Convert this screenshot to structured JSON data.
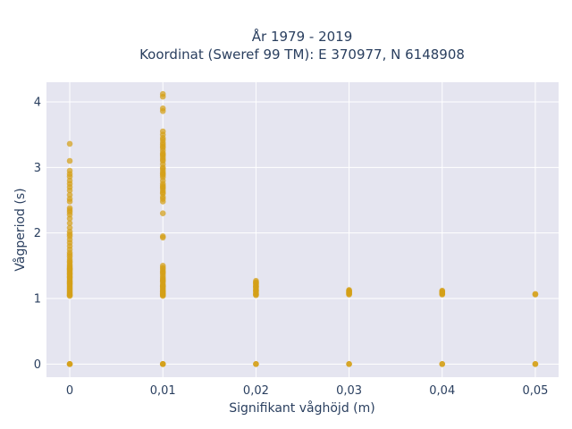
{
  "chart_data": {
    "type": "scatter",
    "title": "År 1979 - 2019",
    "subtitle": "Koordinat (Sweref 99 TM): E 370977, N 6148908",
    "xlabel": "Signifikant våghöjd (m)",
    "ylabel": "Vågperiod (s)",
    "xlim": [
      -0.0025,
      0.0525
    ],
    "ylim": [
      -0.2,
      4.3
    ],
    "x_ticks": [
      0,
      0.01,
      0.02,
      0.03,
      0.04,
      0.05
    ],
    "x_tick_labels": [
      "0",
      "0,01",
      "0,02",
      "0,03",
      "0,04",
      "0,05"
    ],
    "y_ticks": [
      0,
      1,
      2,
      3,
      4
    ],
    "y_tick_labels": [
      "0",
      "1",
      "2",
      "3",
      "4"
    ],
    "grid": true,
    "legend": "none",
    "colors": {
      "marker": "#d4a017",
      "plot_bg": "#e5e5f0",
      "grid": "#ffffff",
      "text": "#2a3f5f"
    },
    "series": [
      {
        "x": [
          0,
          0,
          0,
          0,
          0,
          0,
          0,
          0,
          0,
          0,
          0,
          0,
          0,
          0,
          0,
          0,
          0,
          0,
          0,
          0,
          0,
          0,
          0,
          0,
          0,
          0,
          0,
          0,
          0,
          0,
          0,
          0,
          0,
          0,
          0,
          0,
          0,
          0,
          0,
          0,
          0,
          0,
          0,
          0,
          0,
          0,
          0,
          0,
          0,
          0,
          0,
          0,
          0,
          0,
          0,
          0,
          0,
          0,
          0,
          0,
          0,
          0,
          0,
          0,
          0.01,
          0.01,
          0.01,
          0.01,
          0.01,
          0.01,
          0.01,
          0.01,
          0.01,
          0.01,
          0.01,
          0.01,
          0.01,
          0.01,
          0.01,
          0.01,
          0.01,
          0.01,
          0.01,
          0.01,
          0.01,
          0.01,
          0.01,
          0.01,
          0.01,
          0.01,
          0.01,
          0.01,
          0.01,
          0.01,
          0.01,
          0.01,
          0.01,
          0.01,
          0.01,
          0.01,
          0.01,
          0.01,
          0.01,
          0.01,
          0.01,
          0.01,
          0.01,
          0.01,
          0.01,
          0.01,
          0.01,
          0.01,
          0.01,
          0.01,
          0.01,
          0.01,
          0.01,
          0.01,
          0.01,
          0.01,
          0.01,
          0.01,
          0.01,
          0.01,
          0.01,
          0.01,
          0.01,
          0.01,
          0.01,
          0.01,
          0.01,
          0.01,
          0.01,
          0.01,
          0.02,
          0.02,
          0.02,
          0.02,
          0.02,
          0.02,
          0.02,
          0.02,
          0.02,
          0.02,
          0.02,
          0.02,
          0.02,
          0.02,
          0.02,
          0.02,
          0.02,
          0.02,
          0.03,
          0.03,
          0.03,
          0.03,
          0.03,
          0.03,
          0.03,
          0.03,
          0.03,
          0.03,
          0.04,
          0.04,
          0.04,
          0.04,
          0.04,
          0.04,
          0.04,
          0.04,
          0.04,
          0.05,
          0.05,
          0.05,
          0.05
        ],
        "y": [
          0,
          0,
          0,
          3.36,
          3.1,
          2.95,
          2.9,
          2.86,
          2.8,
          2.75,
          2.7,
          2.65,
          2.58,
          2.52,
          2.48,
          2.38,
          2.35,
          2.32,
          2.28,
          2.22,
          2.15,
          2.08,
          2.02,
          1.98,
          1.95,
          1.9,
          1.85,
          1.8,
          1.75,
          1.64,
          1.6,
          1.57,
          1.55,
          1.52,
          1.5,
          1.48,
          1.46,
          1.44,
          1.42,
          1.4,
          1.38,
          1.35,
          1.32,
          1.3,
          1.28,
          1.25,
          1.22,
          1.2,
          1.18,
          1.16,
          1.14,
          1.12,
          1.1,
          1.08,
          1.06,
          1.05,
          1.04,
          1.7,
          1.67,
          1.26,
          1.23,
          1.33,
          1.37,
          1.45,
          0,
          0,
          0,
          4.12,
          4.08,
          3.9,
          3.86,
          3.55,
          3.5,
          3.42,
          3.38,
          3.35,
          3.3,
          3.26,
          3.22,
          3.18,
          3.15,
          3.1,
          3.05,
          3.0,
          2.95,
          2.9,
          2.85,
          2.8,
          2.75,
          2.7,
          2.65,
          2.6,
          2.55,
          2.48,
          2.3,
          1.95,
          1.93,
          1.5,
          1.47,
          1.45,
          1.42,
          1.38,
          1.35,
          1.32,
          1.3,
          1.28,
          1.25,
          1.22,
          1.2,
          1.18,
          1.16,
          1.14,
          1.12,
          1.1,
          1.08,
          1.06,
          1.05,
          1.04,
          3.45,
          3.32,
          3.12,
          2.98,
          2.88,
          2.72,
          2.62,
          2.52,
          1.4,
          1.27,
          1.19,
          1.11,
          1.07,
          3.2,
          2.92,
          2.68,
          0,
          0,
          1.27,
          1.25,
          1.23,
          1.21,
          1.19,
          1.17,
          1.15,
          1.13,
          1.11,
          1.09,
          1.07,
          1.06,
          1.05,
          1.24,
          1.18,
          1.12,
          0,
          0,
          1.13,
          1.12,
          1.11,
          1.1,
          1.09,
          1.08,
          1.07,
          1.06,
          0,
          0,
          1.12,
          1.11,
          1.1,
          1.09,
          1.08,
          1.07,
          1.06,
          0,
          0,
          1.07,
          1.06
        ]
      }
    ]
  }
}
